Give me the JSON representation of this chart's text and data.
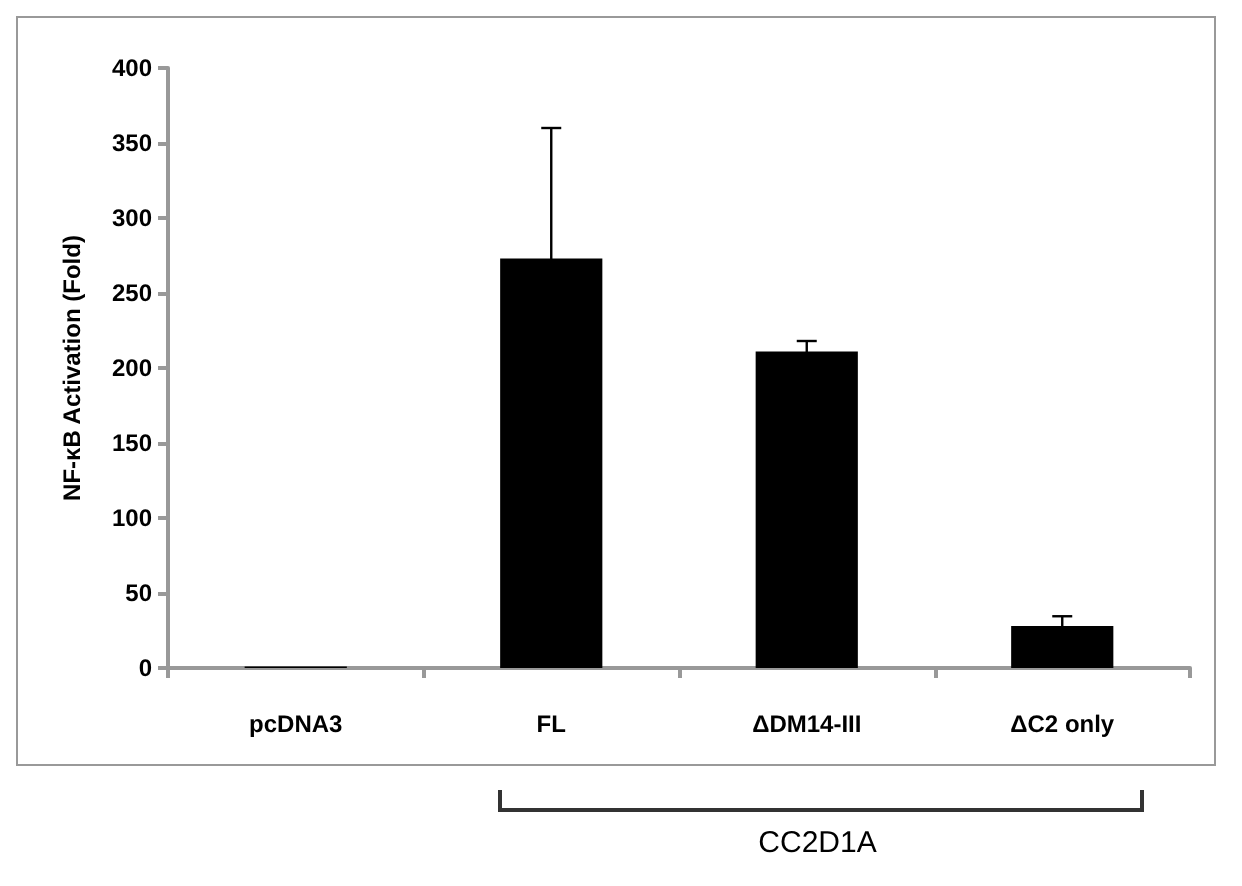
{
  "chart_data": {
    "type": "bar",
    "ylabel": "NF-κB Activation (Fold)",
    "categories": [
      "pcDNA3",
      "FL",
      "ΔDM14-III",
      "ΔC2 only"
    ],
    "values": [
      1,
      273,
      211,
      28
    ],
    "errors": [
      null,
      87,
      7,
      6.5
    ],
    "color": "#000000",
    "ylim": [
      0,
      400
    ],
    "yticks": [
      0,
      50,
      100,
      150,
      200,
      250,
      300,
      350,
      400
    ],
    "grid": false,
    "annotations": [
      "CC2D1A"
    ]
  }
}
